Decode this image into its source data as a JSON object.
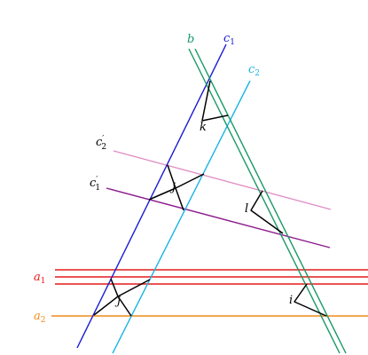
{
  "colors": {
    "c1": "#1a1ad6",
    "c2": "#19b3e6",
    "b": "#199966",
    "c2p": "#e08cc4",
    "c1p": "#8c1a8c",
    "a1": "#e61a1a",
    "a2": "#f08c1a",
    "ink": "#000000"
  },
  "labels": {
    "b": "b",
    "c1": "c",
    "c1_sub": "1",
    "c2": "c",
    "c2_sub": "2",
    "c2p": "c",
    "c2p_sup": "′",
    "c2p_sub": "2",
    "c1p": "c",
    "c1p_sup": "′",
    "c1p_sub": "1",
    "a1": "a",
    "a1_sub": "1",
    "a2": "a",
    "a2_sub": "2",
    "k": "k",
    "j_upper": "j",
    "l": "l",
    "j_lower": "j",
    "i": "i"
  }
}
